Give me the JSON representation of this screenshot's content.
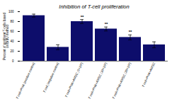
{
  "chart_data": {
    "type": "bar",
    "title": "Inhibition of T-cell proliferation",
    "ylabel": "Percent of proliferat T-cells based\non BrdU method",
    "categories": [
      "T cell+PHA (positive control)",
      "T cell (negative control)",
      "T cell+PHA+AMSC (5×10³)",
      "T cell+PHA+AMSC (10×10³)",
      "T cell+PHA+AMSC (20×10³)",
      "T cell+PHA+AMSC"
    ],
    "values": [
      92,
      28,
      80,
      65,
      48,
      33
    ],
    "errors": [
      3,
      5,
      4,
      4,
      5,
      6
    ],
    "color": "#0d0d6b",
    "ylim": [
      0,
      100
    ],
    "yticks": [
      0,
      20,
      40,
      60,
      80,
      100
    ],
    "grid": false,
    "annotations": [
      {
        "category": "T cell+PHA+AMSC (5×10³)",
        "text": "**"
      },
      {
        "category": "T cell+PHA+AMSC (10×10³)",
        "text": "**"
      },
      {
        "category": "T cell+PHA+AMSC (20×10³)",
        "text": "**"
      }
    ]
  }
}
